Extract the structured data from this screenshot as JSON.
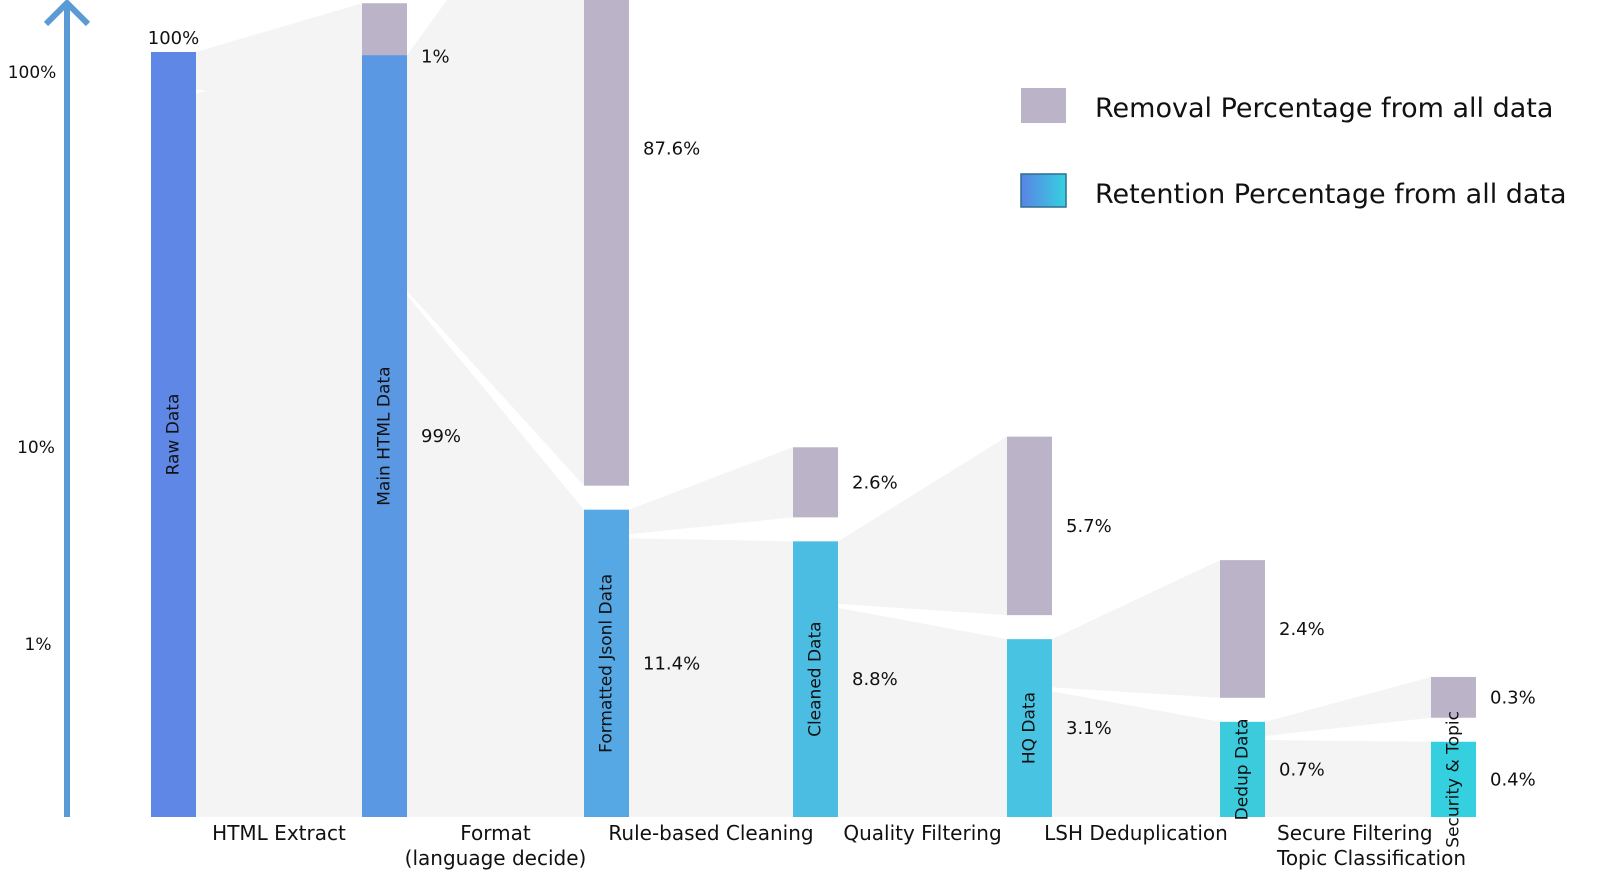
{
  "chart_data": {
    "type": "bar",
    "subtype": "funnel",
    "yscale": "log",
    "y_ticks": [
      "100%",
      "10%",
      "1%"
    ],
    "legend": {
      "position": "top-right",
      "removal_label": "Removal Percentage from all data",
      "retention_label": "Retention Percentage from all data"
    },
    "colors": {
      "removal": "#bbb3c8",
      "flow": "#f4f4f4",
      "axis": "#5b9bd5",
      "legend_grad_start": "#5a83e4",
      "legend_grad_end": "#35d0e0"
    },
    "bars": [
      {
        "label": "Raw Data",
        "retention_value": 100,
        "retention_label": "100%",
        "color": "#5f88e6"
      },
      {
        "label": "Main HTML Data",
        "retention_value": 99,
        "retention_label": "99%",
        "removal_value": 1,
        "removal_label": "1%",
        "color": "#5b98e4"
      },
      {
        "label": "Formatted Jsonl Data",
        "retention_value": 11.4,
        "retention_label": "11.4%",
        "removal_value": 87.6,
        "removal_label": "87.6%",
        "color": "#55a8e3"
      },
      {
        "label": "Cleaned Data",
        "retention_value": 8.8,
        "retention_label": "8.8%",
        "removal_value": 2.6,
        "removal_label": "2.6%",
        "color": "#4cbde2"
      },
      {
        "label": "HQ Data",
        "retention_value": 3.1,
        "retention_label": "3.1%",
        "removal_value": 5.7,
        "removal_label": "5.7%",
        "color": "#48c3e1"
      },
      {
        "label": "Dedup Data",
        "retention_value": 0.7,
        "retention_label": "0.7%",
        "removal_value": 2.4,
        "removal_label": "2.4%",
        "color": "#3ccbdd"
      },
      {
        "label": "Security & Topic",
        "retention_value": 0.4,
        "retention_label": "0.4%",
        "removal_value": 0.3,
        "removal_label": "0.3%",
        "color": "#35d0e0"
      }
    ],
    "stages": [
      [
        "HTML Extract"
      ],
      [
        "Format",
        "(language decide)"
      ],
      [
        "Rule-based Cleaning"
      ],
      [
        "Quality Filtering"
      ],
      [
        "LSH Deduplication"
      ],
      [
        "Secure Filtering",
        "Topic Classification"
      ]
    ]
  }
}
